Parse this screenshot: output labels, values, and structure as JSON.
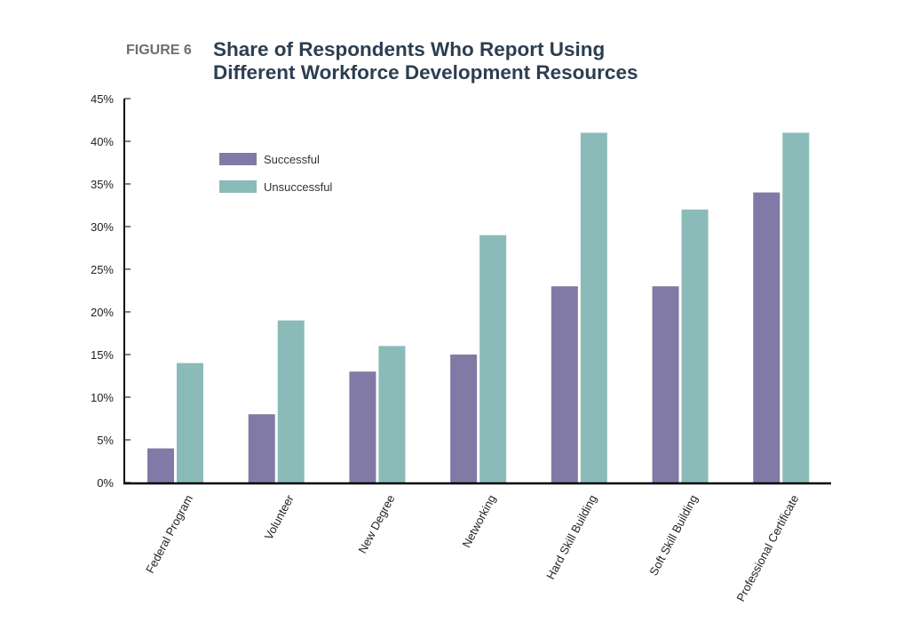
{
  "figure": {
    "label": "FIGURE 6",
    "title_line1": "Share of Respondents Who Report Using",
    "title_line2": "Different Workforce Development Resources"
  },
  "chart_data": {
    "type": "bar",
    "title": "Share of Respondents Who Report Using Different Workforce Development Resources",
    "xlabel": "",
    "ylabel": "",
    "ylim": [
      0,
      45
    ],
    "y_ticks": [
      0,
      5,
      10,
      15,
      20,
      25,
      30,
      35,
      40,
      45
    ],
    "y_tick_labels": [
      "0%",
      "5%",
      "10%",
      "15%",
      "20%",
      "25%",
      "30%",
      "35%",
      "40%",
      "45%"
    ],
    "categories": [
      "Federal Program",
      "Volunteer",
      "New Degree",
      "Networking",
      "Hard Skill Building",
      "Soft Skill Building",
      "Professional Certificate"
    ],
    "series": [
      {
        "name": "Successful",
        "color": "#817aa6",
        "values": [
          4,
          8,
          13,
          15,
          23,
          23,
          34
        ]
      },
      {
        "name": "Unsuccessful",
        "color": "#8bbbb8",
        "values": [
          14,
          19,
          16,
          29,
          41,
          32,
          41
        ]
      }
    ],
    "legend_position": "top-left",
    "grid": false
  }
}
